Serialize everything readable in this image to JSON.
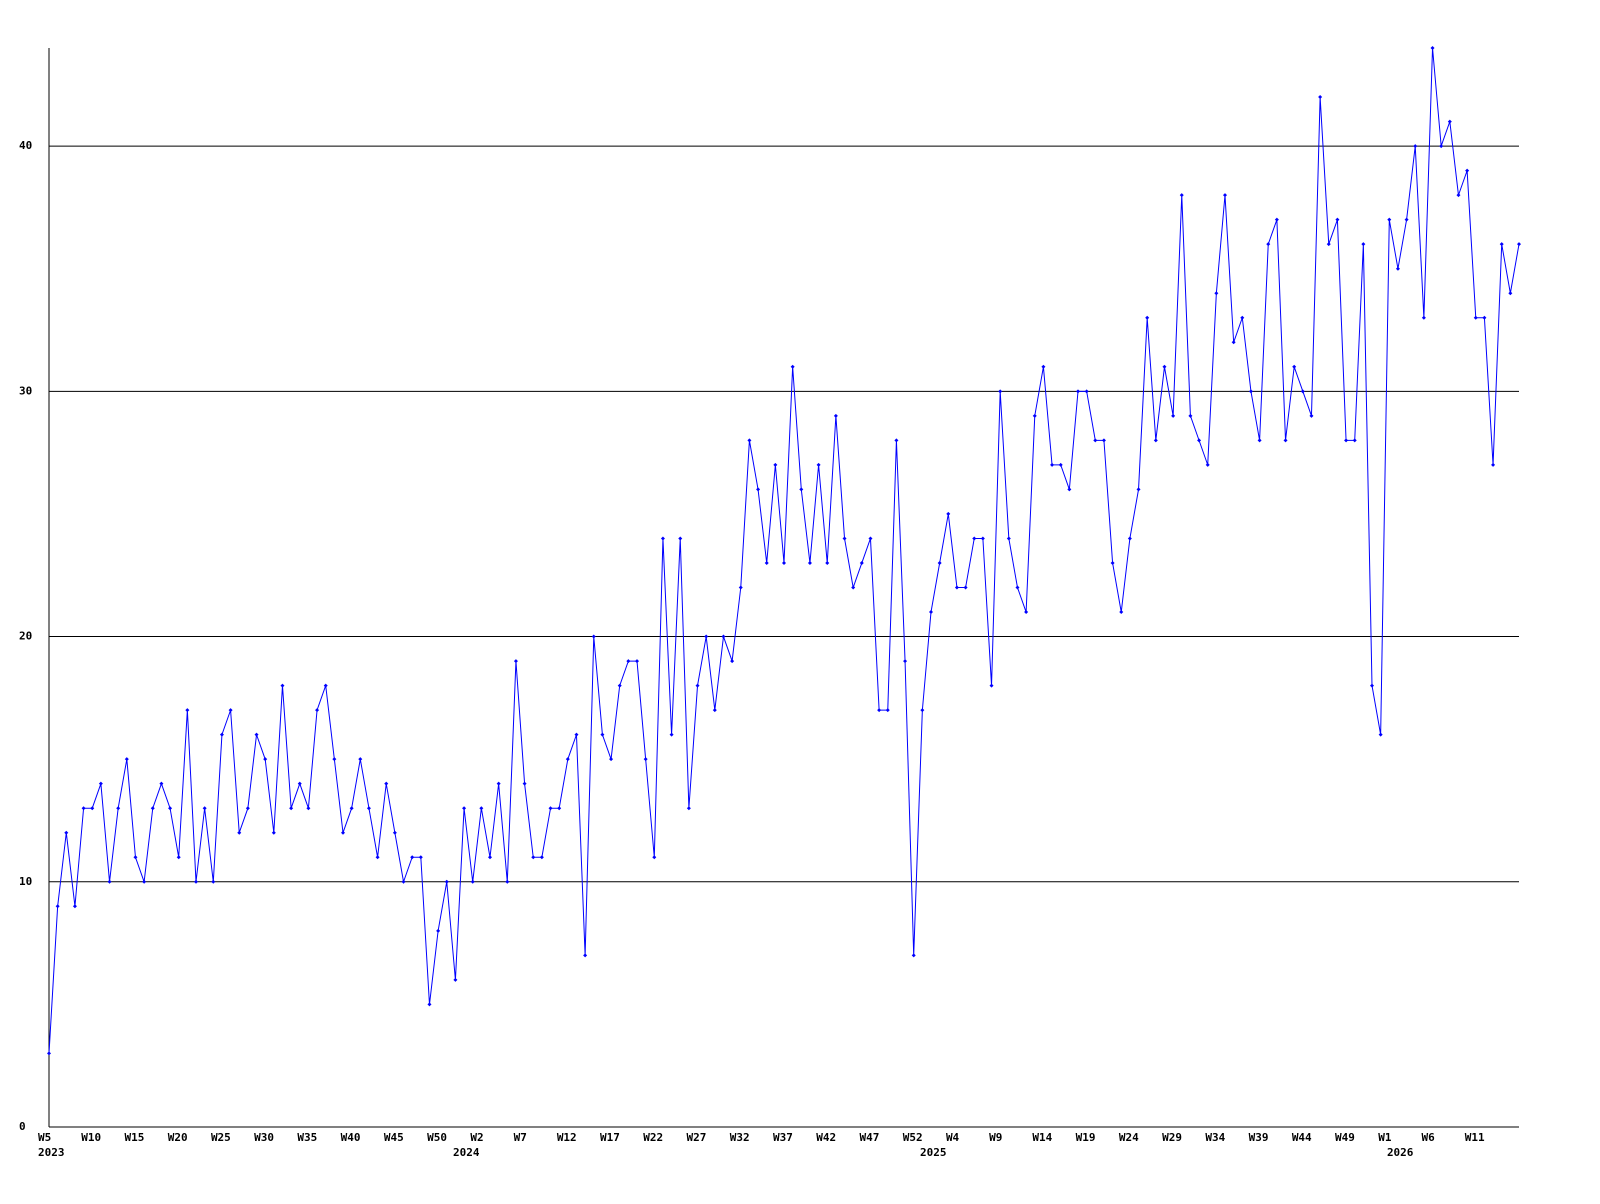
{
  "chart_data": {
    "type": "line",
    "categories": [
      "W5",
      null,
      null,
      null,
      null,
      "W10",
      null,
      null,
      null,
      null,
      "W15",
      null,
      null,
      null,
      null,
      "W20",
      null,
      null,
      null,
      null,
      "W25",
      null,
      null,
      null,
      null,
      "W30",
      null,
      null,
      null,
      null,
      "W35",
      null,
      null,
      null,
      null,
      "W40",
      null,
      null,
      null,
      null,
      "W45",
      null,
      null,
      null,
      null,
      "W50",
      null,
      null,
      null,
      null,
      "W2",
      null,
      null,
      null,
      null,
      "W7",
      null,
      null,
      null,
      null,
      "W12",
      null,
      null,
      null,
      null,
      "W17",
      null,
      null,
      null,
      null,
      "W22",
      null,
      null,
      null,
      null,
      "W27",
      null,
      null,
      null,
      null,
      "W32",
      null,
      null,
      null,
      null,
      "W37",
      null,
      null,
      null,
      null,
      "W42",
      null,
      null,
      null,
      null,
      "W47",
      null,
      null,
      null,
      null,
      "W52",
      null,
      null,
      null,
      null,
      "W4",
      null,
      null,
      null,
      null,
      "W9",
      null,
      null,
      null,
      null,
      "W14",
      null,
      null,
      null,
      null,
      "W19",
      null,
      null,
      null,
      null,
      "W24",
      null,
      null,
      null,
      null,
      "W29",
      null,
      null,
      null,
      null,
      "W34",
      null,
      null,
      null,
      null,
      "W39",
      null,
      null,
      null,
      null,
      "W44",
      null,
      null,
      null,
      null,
      "W49",
      null,
      null,
      null,
      null,
      "W1",
      null,
      null,
      null,
      null,
      "W6",
      null,
      null,
      null,
      null,
      "W11",
      null,
      null,
      null,
      null,
      null
    ],
    "year_labels": [
      "2023",
      null,
      null,
      null,
      null,
      null,
      null,
      null,
      null,
      null,
      null,
      null,
      null,
      null,
      null,
      null,
      null,
      null,
      null,
      null,
      null,
      null,
      null,
      null,
      null,
      null,
      null,
      null,
      null,
      null,
      null,
      null,
      null,
      null,
      null,
      null,
      null,
      null,
      null,
      null,
      null,
      null,
      null,
      null,
      null,
      null,
      null,
      null,
      "2024",
      null,
      null,
      null,
      null,
      null,
      null,
      null,
      null,
      null,
      null,
      null,
      null,
      null,
      null,
      null,
      null,
      null,
      null,
      null,
      null,
      null,
      null,
      null,
      null,
      null,
      null,
      null,
      null,
      null,
      null,
      null,
      null,
      null,
      null,
      null,
      null,
      null,
      null,
      null,
      null,
      null,
      null,
      null,
      null,
      null,
      null,
      null,
      null,
      null,
      null,
      null,
      null,
      null,
      "2025",
      null,
      null,
      null,
      null,
      null,
      null,
      null,
      null,
      null,
      null,
      null,
      null,
      null,
      null,
      null,
      null,
      null,
      null,
      null,
      null,
      null,
      null,
      null,
      null,
      null,
      null,
      null,
      null,
      null,
      null,
      null,
      null,
      null,
      null,
      null,
      null,
      null,
      null,
      null,
      null,
      null,
      null,
      null,
      null,
      null,
      null,
      null,
      null,
      null,
      null,
      null,
      null,
      null,
      "2026",
      null,
      null,
      null,
      null,
      null,
      null,
      null,
      null,
      null,
      null,
      null,
      null,
      null,
      null,
      null,
      null
    ],
    "series": [
      {
        "color": "#0000ff",
        "values": [
          3,
          9,
          12,
          9,
          13,
          13,
          14,
          10,
          13,
          15,
          11,
          10,
          13,
          14,
          13,
          11,
          17,
          10,
          13,
          10,
          16,
          17,
          12,
          13,
          16,
          15,
          12,
          18,
          13,
          14,
          13,
          17,
          18,
          15,
          12,
          13,
          15,
          13,
          11,
          14,
          12,
          10,
          11,
          11,
          5,
          8,
          10,
          6,
          13,
          10,
          13,
          11,
          14,
          10,
          19,
          14,
          11,
          11,
          13,
          13,
          15,
          16,
          7,
          20,
          16,
          15,
          18,
          19,
          19,
          15,
          11,
          24,
          16,
          24,
          13,
          18,
          20,
          17,
          20,
          19,
          22,
          28,
          26,
          23,
          27,
          23,
          31,
          26,
          23,
          27,
          23,
          29,
          24,
          22,
          23,
          24,
          17,
          17,
          28,
          19,
          7,
          17,
          21,
          23,
          25,
          22,
          22,
          24,
          24,
          18,
          30,
          24,
          22,
          21,
          29,
          31,
          27,
          27,
          26,
          30,
          30,
          28,
          28,
          23,
          21,
          24,
          26,
          33,
          28,
          31,
          29,
          38,
          29,
          28,
          27,
          34,
          38,
          32,
          33,
          30,
          28,
          36,
          37,
          28,
          31,
          30,
          29,
          42,
          36,
          37,
          28,
          28,
          36,
          18,
          16,
          37,
          35,
          37,
          40,
          33,
          44,
          40,
          41,
          38,
          39,
          33,
          33,
          27,
          36,
          34,
          36
        ]
      }
    ],
    "ylim": [
      0,
      44
    ],
    "yticks": [
      0,
      10,
      20,
      30,
      40
    ],
    "grid": true
  }
}
